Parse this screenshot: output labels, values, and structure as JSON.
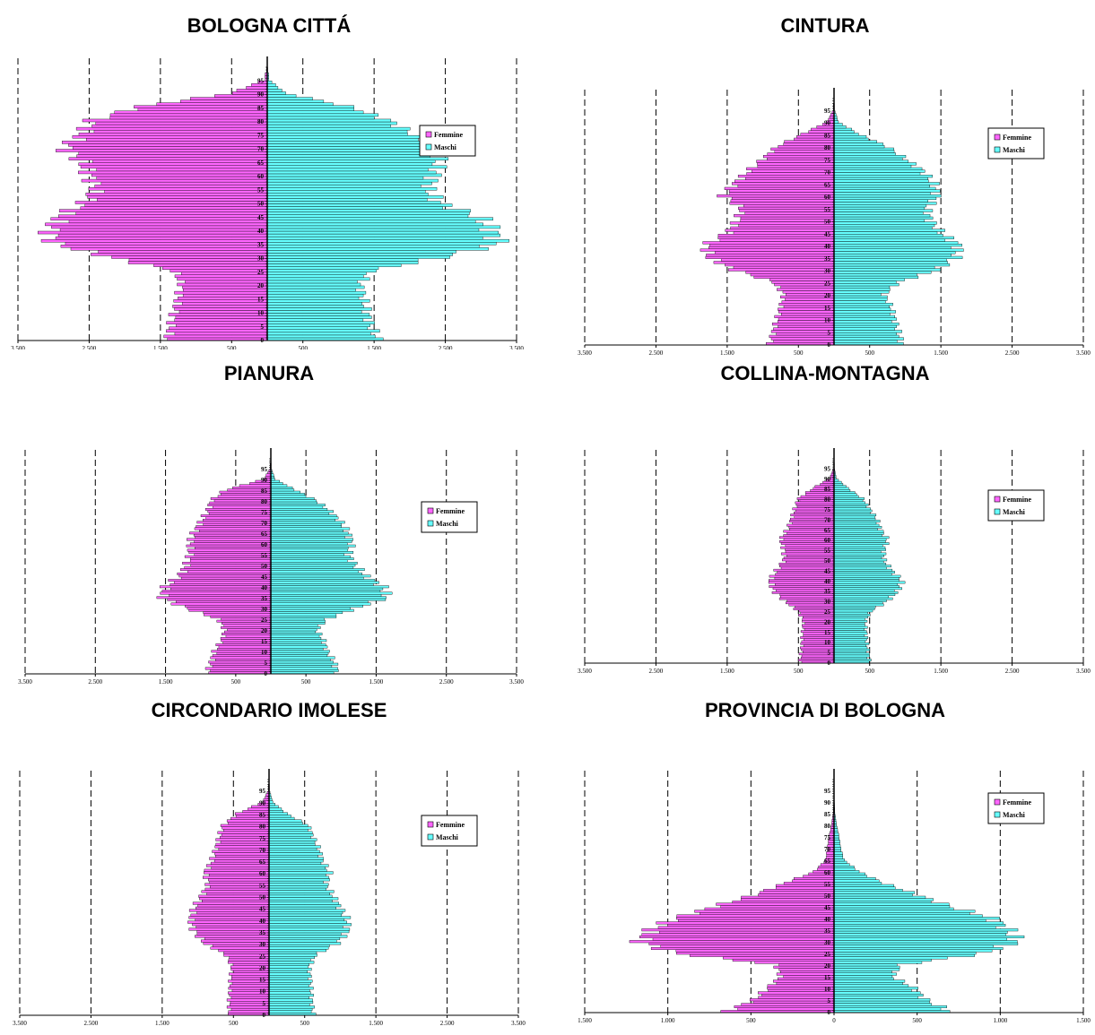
{
  "legend_labels": {
    "female": "Femmine",
    "male": "Maschi"
  },
  "colors": {
    "female": "#ff66ff",
    "male": "#66ffff",
    "stroke": "#000000"
  },
  "chart_data": [
    {
      "type": "bar",
      "orientation": "horizontal",
      "subtype": "population-pyramid",
      "title": "BOLOGNA CITTÁ",
      "xlim": [
        -3500,
        3500
      ],
      "xticks": [
        -3500,
        -2500,
        -1500,
        -500,
        500,
        1500,
        2500,
        3500
      ],
      "xtick_labels": [
        "3.500",
        "2.500",
        "1.500",
        "500",
        "500",
        "1.500",
        "2.500",
        "3.500"
      ],
      "age_labels": [
        "0",
        "5",
        "10",
        "15",
        "20",
        "25",
        "30",
        "35",
        "40",
        "45",
        "50",
        "55",
        "60",
        "65",
        "70",
        "75",
        "80",
        "85",
        "90",
        "95"
      ],
      "legend_position": "top-right",
      "series": [
        {
          "name": "Femmine",
          "values": [
            -1400,
            -1350,
            -1300,
            -1250,
            -1200,
            -1300,
            -2200,
            -3000,
            -3050,
            -2900,
            -2550,
            -2400,
            -2500,
            -2600,
            -2850,
            -2600,
            -2450,
            -1800,
            -500,
            -30
          ]
        },
        {
          "name": "Maschi",
          "values": [
            1550,
            1450,
            1400,
            1350,
            1300,
            1450,
            2450,
            3250,
            3150,
            2950,
            2400,
            2250,
            2350,
            2400,
            2450,
            2050,
            1700,
            1150,
            250,
            20
          ]
        }
      ]
    },
    {
      "type": "bar",
      "orientation": "horizontal",
      "subtype": "population-pyramid",
      "title": "CINTURA",
      "xlim": [
        -3500,
        3500
      ],
      "xticks": [
        -3500,
        -2500,
        -1500,
        -500,
        500,
        1500,
        2500,
        3500
      ],
      "xtick_labels": [
        "3.500",
        "2.500",
        "1.500",
        "500",
        "500",
        "1.500",
        "2.500",
        "3.500"
      ],
      "age_labels": [
        "0",
        "5",
        "10",
        "15",
        "20",
        "25",
        "30",
        "35",
        "40",
        "45",
        "50",
        "55",
        "60",
        "65",
        "70",
        "75",
        "80",
        "85",
        "90",
        "95"
      ],
      "legend_position": "top-right",
      "series": [
        {
          "name": "Femmine",
          "values": [
            -900,
            -850,
            -800,
            -750,
            -700,
            -850,
            -1400,
            -1750,
            -1800,
            -1500,
            -1350,
            -1300,
            -1550,
            -1400,
            -1200,
            -1000,
            -800,
            -450,
            -100,
            -10
          ]
        },
        {
          "name": "Maschi",
          "values": [
            950,
            900,
            850,
            800,
            700,
            900,
            1450,
            1700,
            1750,
            1500,
            1350,
            1300,
            1450,
            1400,
            1250,
            1000,
            750,
            350,
            60,
            5
          ]
        }
      ]
    },
    {
      "type": "bar",
      "orientation": "horizontal",
      "subtype": "population-pyramid",
      "title": "PIANURA",
      "xlim": [
        -3500,
        3500
      ],
      "xticks": [
        -3500,
        -2500,
        -1500,
        -500,
        500,
        1500,
        2500,
        3500
      ],
      "xtick_labels": [
        "3.500",
        "2.500",
        "1.500",
        "500",
        "500",
        "1.500",
        "2.500",
        "3.500"
      ],
      "age_labels": [
        "0",
        "5",
        "10",
        "15",
        "20",
        "25",
        "30",
        "35",
        "40",
        "45",
        "50",
        "55",
        "60",
        "65",
        "70",
        "75",
        "80",
        "85",
        "90",
        "95"
      ],
      "legend_position": "top-right",
      "series": [
        {
          "name": "Femmine",
          "values": [
            -900,
            -850,
            -800,
            -700,
            -650,
            -750,
            -1200,
            -1550,
            -1500,
            -1300,
            -1200,
            -1150,
            -1150,
            -1100,
            -1000,
            -900,
            -850,
            -650,
            -100,
            -10
          ]
        },
        {
          "name": "Maschi",
          "values": [
            950,
            900,
            800,
            750,
            650,
            800,
            1200,
            1650,
            1600,
            1350,
            1200,
            1100,
            1150,
            1100,
            1000,
            850,
            650,
            350,
            60,
            5
          ]
        }
      ]
    },
    {
      "type": "bar",
      "orientation": "horizontal",
      "subtype": "population-pyramid",
      "title": "COLLINA-MONTAGNA",
      "xlim": [
        -3500,
        3500
      ],
      "xticks": [
        -3500,
        -2500,
        -1500,
        -500,
        500,
        1500,
        2500,
        3500
      ],
      "xtick_labels": [
        "3.500",
        "2.500",
        "1.500",
        "500",
        "500",
        "1.500",
        "2.500",
        "3.500"
      ],
      "age_labels": [
        "0",
        "5",
        "10",
        "15",
        "20",
        "25",
        "30",
        "35",
        "40",
        "45",
        "50",
        "55",
        "60",
        "65",
        "70",
        "75",
        "80",
        "85",
        "90",
        "95"
      ],
      "legend_position": "top-right",
      "series": [
        {
          "name": "Femmine",
          "values": [
            -480,
            -460,
            -450,
            -440,
            -430,
            -500,
            -700,
            -850,
            -900,
            -800,
            -700,
            -700,
            -750,
            -650,
            -600,
            -550,
            -500,
            -300,
            -60,
            -5
          ]
        },
        {
          "name": "Maschi",
          "values": [
            500,
            480,
            460,
            450,
            440,
            520,
            750,
            900,
            950,
            800,
            700,
            700,
            750,
            650,
            600,
            500,
            400,
            200,
            30,
            5
          ]
        }
      ]
    },
    {
      "type": "bar",
      "orientation": "horizontal",
      "subtype": "population-pyramid",
      "title": "CIRCONDARIO IMOLESE",
      "xlim": [
        -3500,
        3500
      ],
      "xticks": [
        -3500,
        -2500,
        -1500,
        -500,
        500,
        1500,
        2500,
        3500
      ],
      "xtick_labels": [
        "3.500",
        "2.500",
        "1.500",
        "500",
        "500",
        "1.500",
        "2.500",
        "3.500"
      ],
      "age_labels": [
        "0",
        "5",
        "10",
        "15",
        "20",
        "25",
        "30",
        "35",
        "40",
        "45",
        "50",
        "55",
        "60",
        "65",
        "70",
        "75",
        "80",
        "85",
        "90",
        "95"
      ],
      "legend_position": "top-right",
      "series": [
        {
          "name": "Femmine",
          "values": [
            -560,
            -560,
            -550,
            -540,
            -520,
            -600,
            -900,
            -1050,
            -1100,
            -1050,
            -950,
            -850,
            -900,
            -800,
            -750,
            -700,
            -650,
            -450,
            -90,
            -10
          ]
        },
        {
          "name": "Maschi",
          "values": [
            620,
            600,
            590,
            580,
            560,
            650,
            950,
            1100,
            1100,
            1000,
            900,
            800,
            850,
            750,
            700,
            620,
            550,
            250,
            50,
            5
          ]
        }
      ]
    },
    {
      "type": "bar",
      "orientation": "horizontal",
      "subtype": "population-pyramid",
      "title": "PROVINCIA DI BOLOGNA",
      "xlim": [
        -1500,
        1500
      ],
      "xticks": [
        -1500,
        -1000,
        -500,
        0,
        500,
        1000,
        1500
      ],
      "xtick_labels": [
        "1.500",
        "1.000",
        "500",
        "0",
        "500",
        "1.000",
        "1.500"
      ],
      "age_labels": [
        "0",
        "5",
        "10",
        "15",
        "20",
        "25",
        "30",
        "35",
        "40",
        "45",
        "50",
        "55",
        "60",
        "65",
        "70",
        "75",
        "80",
        "85",
        "90",
        "95"
      ],
      "legend_position": "top-right",
      "series": [
        {
          "name": "Femmine",
          "values": [
            -650,
            -480,
            -400,
            -320,
            -350,
            -950,
            -1170,
            -1100,
            -950,
            -720,
            -480,
            -300,
            -120,
            -50,
            -40,
            -30,
            -15,
            -5,
            -2,
            0
          ]
        },
        {
          "name": "Maschi",
          "values": [
            700,
            550,
            480,
            350,
            400,
            900,
            1100,
            1050,
            950,
            700,
            500,
            300,
            150,
            60,
            40,
            30,
            15,
            5,
            2,
            0
          ]
        }
      ]
    }
  ]
}
